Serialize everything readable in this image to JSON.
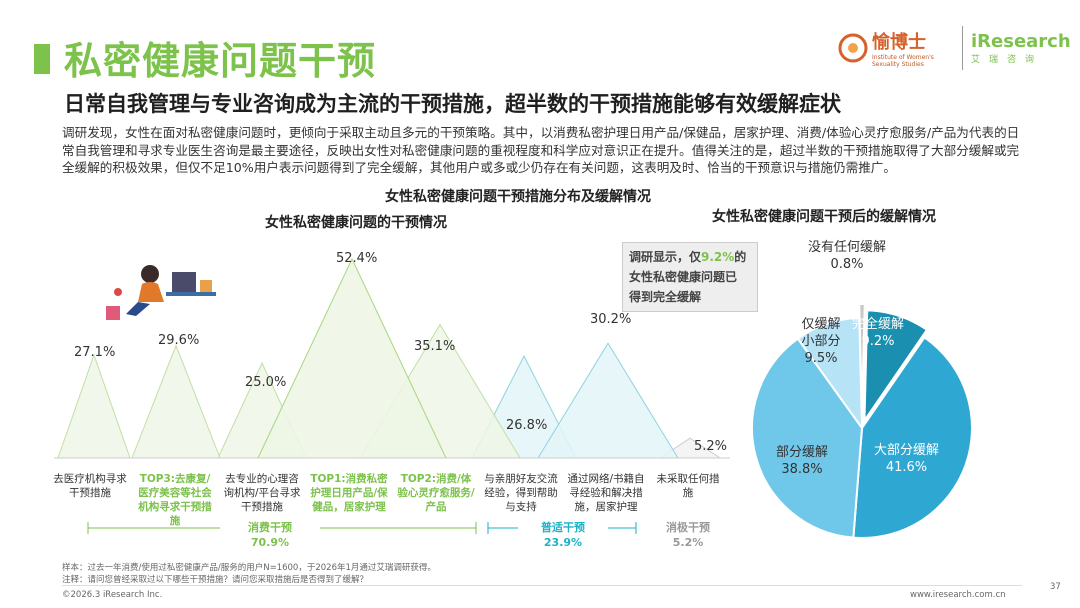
{
  "header": {
    "title": "私密健康问题干预",
    "subtitle": "日常自我管理与专业咨询成为主流的干预措施，超半数的干预措施能够有效缓解症状",
    "intro": "调研发现，女性在面对私密健康问题时，更倾向于采取主动且多元的干预策略。其中，以消费私密护理日用产品/保健品，居家护理、消费/体验心灵疗愈服务/产品为代表的日常自我管理和寻求专业医生咨询是最主要途径，反映出女性对私密健康问题的重视程度和科学应对意识正在提升。值得关注的是，超过半数的干预措施取得了大部分缓解或完全缓解的积极效果，但仅不足10%用户表示问题得到了完全缓解，其他用户或多或少仍存在有关问题，这表明及时、恰当的干预意识与措施仍需推广。"
  },
  "logos": {
    "yuboshi": "愉博士",
    "yuboshi_sub": "Institute of Women's Sexuality Studies",
    "iresearch": "iResearch",
    "iresearch_sub": "艾瑞咨询"
  },
  "figure_title": "女性私密健康问题干预措施分布及缓解情况",
  "chart_data": [
    {
      "type": "area",
      "title": "女性私密健康问题的干预情况",
      "unit": "%",
      "categories": [
        "去医疗机构寻求干预措施",
        "TOP3:去康复/医疗美容等社会机构寻求干预措施",
        "去专业的心理咨询机构/平台寻求干预措施",
        "TOP1:消费私密护理日用产品/保健品，居家护理",
        "TOP2:消费/体验心灵疗愈服务/产品",
        "与亲朋好友交流经验，得到帮助与支持",
        "通过网络/书籍自寻经验和解决措施，居家护理",
        "未采取任何措施"
      ],
      "values": [
        27.1,
        29.6,
        25.0,
        52.4,
        35.1,
        26.8,
        30.2,
        5.2
      ],
      "value_labels": [
        "27.1%",
        "29.6%",
        "25.0%",
        "52.4%",
        "35.1%",
        "26.8%",
        "30.2%",
        "5.2%"
      ],
      "ylim": [
        0,
        60
      ],
      "groups": [
        {
          "name": "消费干预",
          "value": "70.9%",
          "color": "#7cc24b"
        },
        {
          "name": "普适干预",
          "value": "23.9%",
          "color": "#1bb3c4"
        },
        {
          "name": "消极干预",
          "value": "5.2%",
          "color": "#999999"
        }
      ]
    },
    {
      "type": "pie",
      "title": "女性私密健康问题干预后的缓解情况",
      "labels": [
        "完全缓解",
        "大部分缓解",
        "部分缓解",
        "仅缓解小部分",
        "没有任何缓解"
      ],
      "values": [
        9.2,
        41.6,
        38.8,
        9.5,
        0.8
      ],
      "value_labels": [
        "9.2%",
        "41.6%",
        "38.8%",
        "9.5%",
        "0.8%"
      ],
      "colors": [
        "#1a8fb0",
        "#2ea7d2",
        "#6fc7ea",
        "#b6e3f6",
        "#c8c8c8"
      ]
    }
  ],
  "callout": {
    "line1a": "调研显示，仅",
    "line1b": "9.2%",
    "line1c": "的",
    "line2": "女性私密健康问题已",
    "line3": "得到完全缓解"
  },
  "footer": {
    "sample": "样本：过去一年消费/使用过私密健康产品/服务的用户N=1600，于2026年1月通过艾瑞调研获得。",
    "note": "注释：请问您曾经采取过以下哪些干预措施？请问您采取措施后是否得到了缓解？",
    "copyright": "©2026.3 iResearch Inc.",
    "website": "www.iresearch.com.cn",
    "page": "37"
  }
}
